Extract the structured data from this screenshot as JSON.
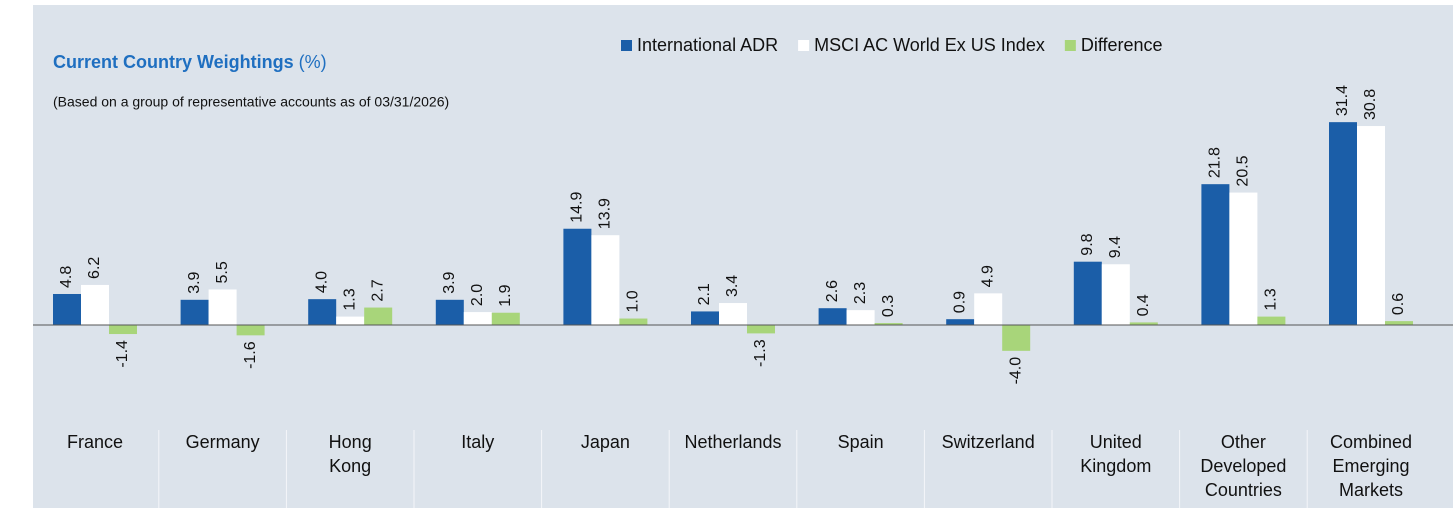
{
  "chart_data": {
    "type": "bar",
    "title": "Current Country Weightings",
    "title_unit": "(%)",
    "subtitle": "(Based on a group of representative accounts as of 03/31/2026)",
    "categories": [
      "France",
      "Germany",
      "Hong Kong",
      "Italy",
      "Japan",
      "Netherlands",
      "Spain",
      "Switzerland",
      "United Kingdom",
      "Other Developed Countries",
      "Combined Emerging Markets"
    ],
    "series": [
      {
        "name": "International ADR",
        "color": "#1b5ea8",
        "values": [
          4.8,
          3.9,
          4.0,
          3.9,
          14.9,
          2.1,
          2.6,
          0.9,
          9.8,
          21.8,
          31.4
        ],
        "value_labels": [
          "4.8",
          "3.9",
          "4.0",
          "3.9",
          "14.9",
          "2.1",
          "2.6",
          "0.9",
          "9.8",
          "21.8",
          "31.4"
        ]
      },
      {
        "name": "MSCI AC World Ex US Index",
        "color": "#ffffff",
        "values": [
          6.2,
          5.5,
          1.3,
          2.0,
          13.9,
          3.4,
          2.3,
          4.9,
          9.4,
          20.5,
          30.8
        ],
        "value_labels": [
          "6.2",
          "5.5",
          "1.3",
          "2.0",
          "13.9",
          "3.4",
          "2.3",
          "4.9",
          "9.4",
          "20.5",
          "30.8"
        ]
      },
      {
        "name": "Difference",
        "color": "#a8d57a",
        "values": [
          -1.4,
          -1.6,
          2.7,
          1.9,
          1.0,
          -1.3,
          0.3,
          -4.0,
          0.4,
          1.3,
          0.6
        ],
        "value_labels": [
          "-1.4",
          "-1.6",
          "2.7",
          "1.9",
          "1.0",
          "-1.3",
          "0.3",
          "-4.0",
          "0.4",
          "1.3",
          "0.6"
        ]
      }
    ],
    "ylim": [
      -10,
      35
    ],
    "legend": "top-right"
  }
}
